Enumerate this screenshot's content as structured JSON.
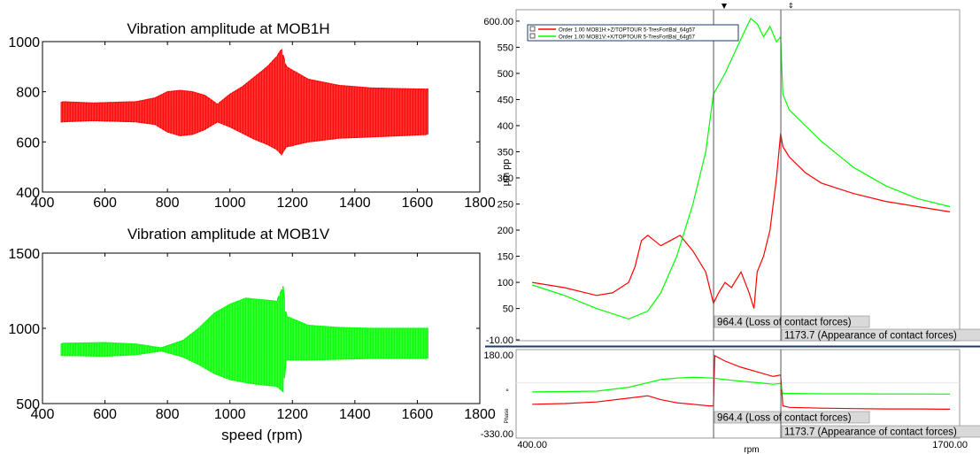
{
  "colors": {
    "red": "#ff0000",
    "green": "#00ff00",
    "navy": "#1a3b6e",
    "marker_bg": "#d9d9d9",
    "grid": "#e6e6e6"
  },
  "chart_data": [
    {
      "type": "area",
      "title": "Vibration amplitude at MOB1H",
      "xlabel": "",
      "ylabel": "",
      "xlim": [
        400,
        1800
      ],
      "ylim": [
        400,
        1000
      ],
      "xticks": [
        "400",
        "600",
        "800",
        "1000",
        "1200",
        "1400",
        "1600",
        "1800"
      ],
      "yticks": [
        "400",
        "600",
        "800",
        "1000"
      ],
      "series": [
        {
          "color": "#ff0000",
          "x": [
            460,
            560,
            700,
            760,
            800,
            840,
            880,
            920,
            960,
            1000,
            1040,
            1080,
            1120,
            1150,
            1165,
            1180,
            1250,
            1350,
            1450,
            1550,
            1635
          ],
          "upper": [
            760,
            755,
            760,
            775,
            800,
            805,
            800,
            785,
            750,
            790,
            820,
            860,
            900,
            940,
            970,
            900,
            850,
            825,
            815,
            812,
            810
          ],
          "lower": [
            680,
            685,
            680,
            670,
            640,
            625,
            630,
            650,
            680,
            660,
            635,
            610,
            590,
            570,
            550,
            580,
            600,
            615,
            620,
            625,
            630
          ]
        }
      ]
    },
    {
      "type": "area",
      "title": "Vibration amplitude at MOB1V",
      "xlabel": "speed (rpm)",
      "ylabel": "",
      "xlim": [
        400,
        1800
      ],
      "ylim": [
        500,
        1500
      ],
      "xticks": [
        "400",
        "600",
        "800",
        "1000",
        "1200",
        "1400",
        "1600",
        "1800"
      ],
      "yticks": [
        "500",
        "1000",
        "1500"
      ],
      "series": [
        {
          "color": "#00ff00",
          "x": [
            460,
            600,
            700,
            780,
            850,
            900,
            950,
            1000,
            1050,
            1100,
            1150,
            1170,
            1180,
            1250,
            1350,
            1450,
            1550,
            1635
          ],
          "upper": [
            900,
            905,
            895,
            870,
            920,
            1000,
            1100,
            1160,
            1200,
            1190,
            1180,
            1280,
            1080,
            1020,
            1005,
            1000,
            1000,
            1000
          ],
          "lower": [
            820,
            815,
            825,
            850,
            810,
            760,
            700,
            660,
            640,
            625,
            615,
            580,
            790,
            790,
            795,
            800,
            800,
            800
          ]
        }
      ]
    },
    {
      "type": "line",
      "title": "",
      "xlabel": "",
      "ylabel": "µm pp",
      "xlim": [
        350,
        1730
      ],
      "ylim": [
        -10,
        610
      ],
      "yticks": [
        "600.00",
        "550",
        "500",
        "450",
        "400",
        "350",
        "300",
        "250",
        "200",
        "150",
        "100",
        "50",
        "-10.00"
      ],
      "legend": [
        "Order 1.00 MOB1H:+Z/TOPTOUR  5-TresFortBal_64g57",
        "Order 1.00 MOB1V:+X/TOPTOUR  5-TresFortBal_64g57"
      ],
      "legend_placement": "top-left",
      "markers": [
        {
          "x": 964.4,
          "label": "964.4 (Loss of contact forces)"
        },
        {
          "x": 1173.7,
          "label": "1173.7 (Appearance of contact forces)"
        }
      ],
      "series": [
        {
          "name": "Order 1.00 MOB1H:+Z/TOPTOUR  5-TresFortBal_64g57",
          "color": "#ff0000",
          "x": [
            400,
            500,
            600,
            650,
            700,
            720,
            740,
            760,
            780,
            800,
            830,
            860,
            900,
            940,
            964,
            980,
            1000,
            1020,
            1050,
            1075,
            1090,
            1100,
            1120,
            1140,
            1160,
            1173,
            1180,
            1200,
            1250,
            1300,
            1400,
            1500,
            1600,
            1700
          ],
          "y": [
            100,
            90,
            75,
            80,
            100,
            130,
            180,
            190,
            180,
            170,
            180,
            190,
            160,
            120,
            60,
            80,
            100,
            90,
            120,
            80,
            50,
            120,
            150,
            200,
            300,
            385,
            360,
            340,
            310,
            290,
            270,
            255,
            245,
            235
          ]
        },
        {
          "name": "Order 1.00 MOB1V:+X/TOPTOUR  5-TresFortBal_64g57",
          "color": "#00ff00",
          "x": [
            400,
            500,
            600,
            700,
            760,
            800,
            850,
            900,
            940,
            964,
            1000,
            1030,
            1060,
            1080,
            1100,
            1120,
            1140,
            1160,
            1173,
            1180,
            1200,
            1250,
            1300,
            1400,
            1500,
            1600,
            1700
          ],
          "y": [
            95,
            75,
            50,
            30,
            45,
            80,
            150,
            250,
            350,
            460,
            500,
            540,
            580,
            605,
            595,
            570,
            590,
            560,
            570,
            460,
            430,
            400,
            370,
            320,
            285,
            260,
            245
          ]
        }
      ]
    },
    {
      "type": "line",
      "title": "",
      "xlabel": "rpm",
      "ylabel": "Phase",
      "xlim": [
        350,
        1730
      ],
      "ylim": [
        -330,
        180
      ],
      "xticks": [
        "400.00",
        "1700.00"
      ],
      "yticks": [
        "180.00",
        "-330.00"
      ],
      "markers": [
        {
          "x": 964.4,
          "label": "964.4 (Loss of contact forces)"
        },
        {
          "x": 1173.7,
          "label": "1173.7 (Appearance of contact forces)"
        }
      ],
      "series": [
        {
          "name": "Order 1.00 MOB1H:+Z/TOPTOUR  5-TresFortBal_64g57",
          "color": "#ff0000",
          "x": [
            400,
            500,
            600,
            700,
            760,
            800,
            850,
            900,
            950,
            964,
            968,
            1000,
            1050,
            1100,
            1150,
            1173,
            1180,
            1200,
            1300,
            1400,
            1500,
            1600,
            1700
          ],
          "y": [
            -140,
            -135,
            -125,
            -100,
            -85,
            -110,
            -130,
            -140,
            -150,
            -150,
            175,
            140,
            100,
            70,
            40,
            50,
            -150,
            -160,
            -165,
            -168,
            -170,
            -170,
            -172
          ]
        },
        {
          "name": "Order 1.00 MOB1V:+X/TOPTOUR  5-TresFortBal_64g57",
          "color": "#00ff00",
          "x": [
            400,
            500,
            600,
            700,
            760,
            800,
            850,
            900,
            964,
            1000,
            1050,
            1100,
            1150,
            1173,
            1180,
            1200,
            1300,
            1400,
            1500,
            1600,
            1700
          ],
          "y": [
            -60,
            -58,
            -55,
            -30,
            0,
            20,
            30,
            35,
            30,
            20,
            10,
            0,
            -10,
            -5,
            -70,
            -70,
            -72,
            -72,
            -73,
            -73,
            -74
          ]
        }
      ]
    }
  ],
  "phase_unit_symbol": "°"
}
